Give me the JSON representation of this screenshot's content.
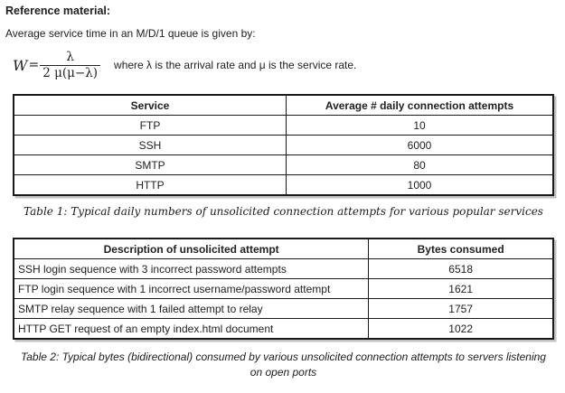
{
  "page": {
    "heading": "Reference material:",
    "intro": "Average service time in an M/D/1 queue is given by:",
    "formula": {
      "lhs": "W",
      "equals": "=",
      "numerator": "λ",
      "denominator": "2 μ(μ−λ)",
      "note": "where λ is the arrival rate and μ is the service rate."
    }
  },
  "table1": {
    "headers": [
      "Service",
      "Average # daily connection attempts"
    ],
    "rows": [
      [
        "FTP",
        "10"
      ],
      [
        "SSH",
        "6000"
      ],
      [
        "SMTP",
        "80"
      ],
      [
        "HTTP",
        "1000"
      ]
    ],
    "caption": "Table 1: Typical daily numbers of unsolicited connection attempts for various popular services"
  },
  "table2": {
    "headers": [
      "Description of unsolicited attempt",
      "Bytes consumed"
    ],
    "rows": [
      [
        "SSH login sequence with 3 incorrect password attempts",
        "6518"
      ],
      [
        "FTP login sequence with 1 incorrect username/password attempt",
        "1621"
      ],
      [
        "SMTP relay sequence with 1 failed attempt to relay",
        "1757"
      ],
      [
        "HTTP GET request of an empty index.html document",
        "1022"
      ]
    ],
    "caption": "Table 2: Typical bytes (bidirectional) consumed by various unsolicited connection attempts to servers listening on open ports"
  }
}
